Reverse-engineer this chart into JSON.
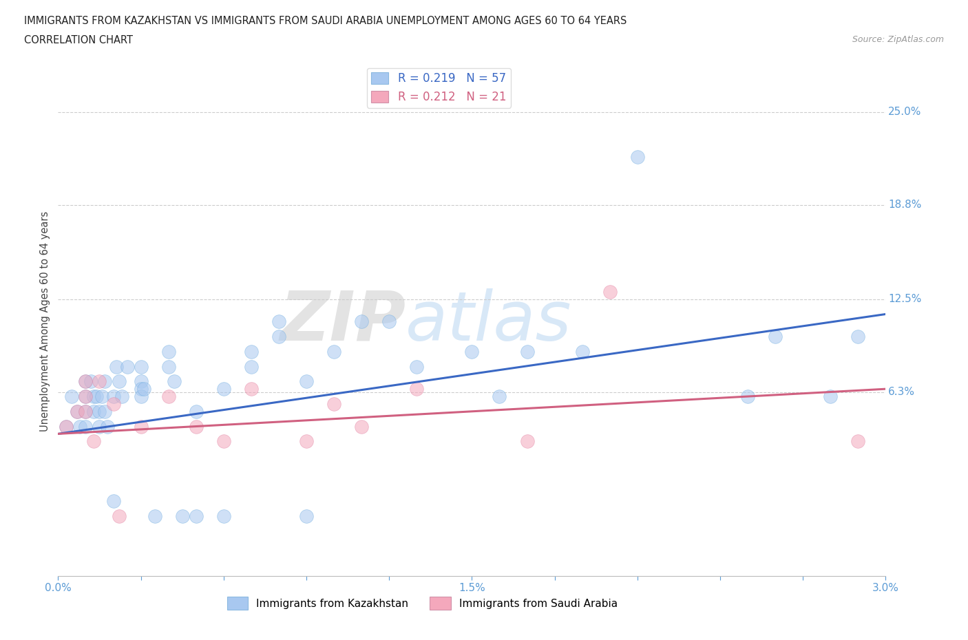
{
  "title_line1": "IMMIGRANTS FROM KAZAKHSTAN VS IMMIGRANTS FROM SAUDI ARABIA UNEMPLOYMENT AMONG AGES 60 TO 64 YEARS",
  "title_line2": "CORRELATION CHART",
  "source_text": "Source: ZipAtlas.com",
  "ylabel": "Unemployment Among Ages 60 to 64 years",
  "xlim": [
    0.0,
    0.03
  ],
  "ylim": [
    -0.06,
    0.28
  ],
  "right_ytick_labels": [
    "25.0%",
    "18.8%",
    "12.5%",
    "6.3%"
  ],
  "right_ytick_vals": [
    0.25,
    0.188,
    0.125,
    0.063
  ],
  "legend_R1": "R = 0.219",
  "legend_N1": "N = 57",
  "legend_R2": "R = 0.212",
  "legend_N2": "N = 21",
  "color_kaz": "#A8C8F0",
  "color_saudi": "#F4A8BC",
  "color_kaz_line": "#3A68C4",
  "color_saudi_line": "#D06080",
  "color_axis_labels": "#5B9BD5",
  "background": "#FFFFFF",
  "kaz_x": [
    0.0003,
    0.0005,
    0.0007,
    0.0008,
    0.001,
    0.001,
    0.001,
    0.001,
    0.0012,
    0.0013,
    0.0013,
    0.0014,
    0.0015,
    0.0015,
    0.0016,
    0.0017,
    0.0017,
    0.0018,
    0.002,
    0.002,
    0.0021,
    0.0022,
    0.0023,
    0.0025,
    0.003,
    0.003,
    0.003,
    0.003,
    0.0031,
    0.0035,
    0.004,
    0.004,
    0.0042,
    0.0045,
    0.005,
    0.005,
    0.006,
    0.006,
    0.007,
    0.007,
    0.008,
    0.008,
    0.009,
    0.009,
    0.01,
    0.011,
    0.012,
    0.013,
    0.015,
    0.016,
    0.017,
    0.019,
    0.021,
    0.025,
    0.026,
    0.028,
    0.029
  ],
  "kaz_y": [
    0.04,
    0.06,
    0.05,
    0.04,
    0.07,
    0.06,
    0.05,
    0.04,
    0.07,
    0.06,
    0.05,
    0.06,
    0.05,
    0.04,
    0.06,
    0.07,
    0.05,
    0.04,
    0.06,
    -0.01,
    0.08,
    0.07,
    0.06,
    0.08,
    0.07,
    0.065,
    0.06,
    0.08,
    0.065,
    -0.02,
    0.09,
    0.08,
    0.07,
    -0.02,
    0.05,
    -0.02,
    0.065,
    -0.02,
    0.09,
    0.08,
    0.1,
    0.11,
    0.07,
    -0.02,
    0.09,
    0.11,
    0.11,
    0.08,
    0.09,
    0.06,
    0.09,
    0.09,
    0.22,
    0.06,
    0.1,
    0.06,
    0.1
  ],
  "saudi_x": [
    0.0003,
    0.0007,
    0.001,
    0.001,
    0.001,
    0.0013,
    0.0015,
    0.002,
    0.0022,
    0.003,
    0.004,
    0.005,
    0.006,
    0.007,
    0.009,
    0.01,
    0.011,
    0.013,
    0.017,
    0.02,
    0.029
  ],
  "saudi_y": [
    0.04,
    0.05,
    0.06,
    0.07,
    0.05,
    0.03,
    0.07,
    0.055,
    -0.02,
    0.04,
    0.06,
    0.04,
    0.03,
    0.065,
    0.03,
    0.055,
    0.04,
    0.065,
    0.03,
    0.13,
    0.03
  ],
  "kaz_trend": [
    0.035,
    0.115
  ],
  "saudi_trend": [
    0.035,
    0.065
  ]
}
